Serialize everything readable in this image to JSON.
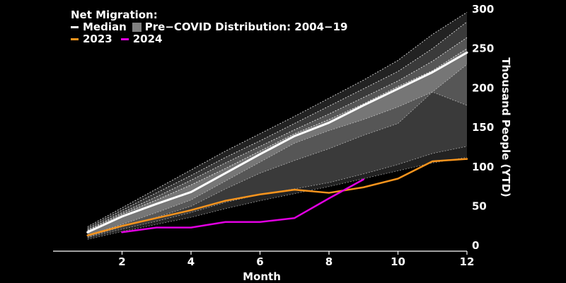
{
  "legend": {
    "title": "Net Migration:",
    "median_label": "Median",
    "distribution_label": "Pre−COVID Distribution: 2004−19",
    "label_2023": "2023",
    "label_2024": "2024"
  },
  "colors": {
    "background": "#000000",
    "median": "#ffffff",
    "series_2023": "#f7941d",
    "series_2024": "#e100e1",
    "distribution_swatch": "#808080",
    "axis": "#ffffff"
  },
  "chart_data": {
    "type": "area",
    "title": "",
    "xlabel": "Month",
    "ylabel": "Thousand People (YTD)",
    "x_ticks": [
      2,
      4,
      6,
      8,
      10,
      12
    ],
    "y_ticks": [
      0,
      50,
      100,
      150,
      200,
      250,
      300
    ],
    "xlim": [
      0,
      12
    ],
    "ylim": [
      -7,
      300
    ],
    "y_axis_side": "right",
    "legend_position": "top-left",
    "grid": false,
    "x": [
      1,
      2,
      3,
      4,
      5,
      6,
      7,
      8,
      9,
      10,
      11,
      12
    ],
    "series": [
      {
        "name": "Median",
        "values": [
          17,
          37,
          53,
          68,
          92,
          116,
          139,
          156,
          178,
          199,
          220,
          245
        ]
      },
      {
        "name": "2023",
        "values": [
          13,
          25,
          35,
          45,
          57,
          65,
          71,
          67,
          74,
          85,
          107,
          110
        ]
      },
      {
        "name": "2024",
        "values": [
          null,
          17,
          23,
          23,
          30,
          30,
          35,
          60,
          84,
          null,
          null,
          null
        ]
      }
    ],
    "distribution_bands": [
      {
        "lower": [
          8,
          18,
          27,
          36,
          47,
          57,
          66,
          75,
          85,
          95,
          105,
          112
        ],
        "upper": [
          24,
          48,
          72,
          96,
          120,
          142,
          164,
          187,
          210,
          235,
          268,
          296
        ]
      },
      {
        "lower": [
          10,
          21,
          31,
          42,
          55,
          65,
          72,
          80,
          91,
          103,
          117,
          126
        ],
        "upper": [
          22,
          45,
          67,
          89,
          112,
          133,
          155,
          177,
          199,
          221,
          250,
          284
        ]
      },
      {
        "lower": [
          11,
          24,
          36,
          50,
          72,
          92,
          108,
          123,
          140,
          155,
          195,
          178
        ],
        "upper": [
          20,
          42,
          62,
          83,
          105,
          126,
          147,
          167,
          188,
          209,
          234,
          264
        ]
      },
      {
        "lower": [
          13,
          27,
          42,
          58,
          82,
          106,
          130,
          146,
          160,
          176,
          195,
          230
        ],
        "upper": [
          19,
          40,
          58,
          77,
          98,
          120,
          142,
          160,
          180,
          202,
          222,
          250
        ]
      }
    ]
  }
}
